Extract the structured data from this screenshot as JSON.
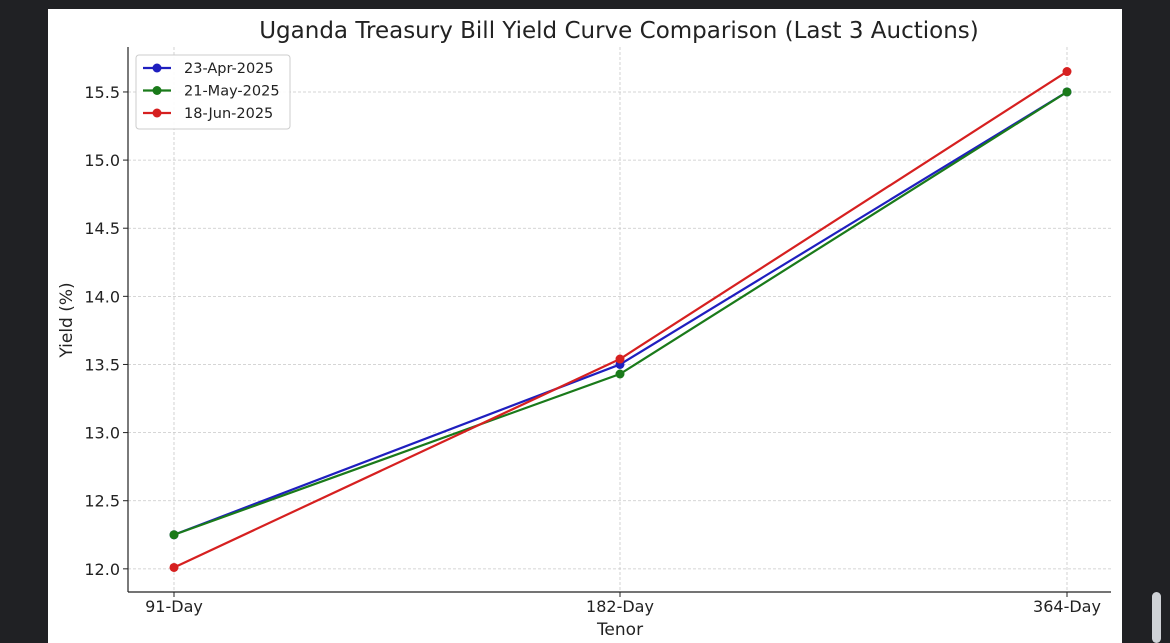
{
  "chart_data": {
    "type": "line",
    "title": "Uganda Treasury Bill Yield Curve Comparison (Last 3 Auctions)",
    "xlabel": "Tenor",
    "ylabel": "Yield (%)",
    "categories": [
      "91-Day",
      "182-Day",
      "364-Day"
    ],
    "ylim": [
      11.83,
      15.83
    ],
    "yticks": [
      "12.0",
      "12.5",
      "13.0",
      "13.5",
      "14.0",
      "14.5",
      "15.0",
      "15.5"
    ],
    "grid": true,
    "legend_position": "top-left",
    "series": [
      {
        "name": "23-Apr-2025",
        "color": "#1f1fbf",
        "values": [
          12.25,
          13.5,
          15.5
        ]
      },
      {
        "name": "21-May-2025",
        "color": "#1a7a1a",
        "values": [
          12.25,
          13.43,
          15.5
        ]
      },
      {
        "name": "18-Jun-2025",
        "color": "#d62020",
        "values": [
          12.01,
          13.54,
          15.65
        ]
      }
    ]
  }
}
